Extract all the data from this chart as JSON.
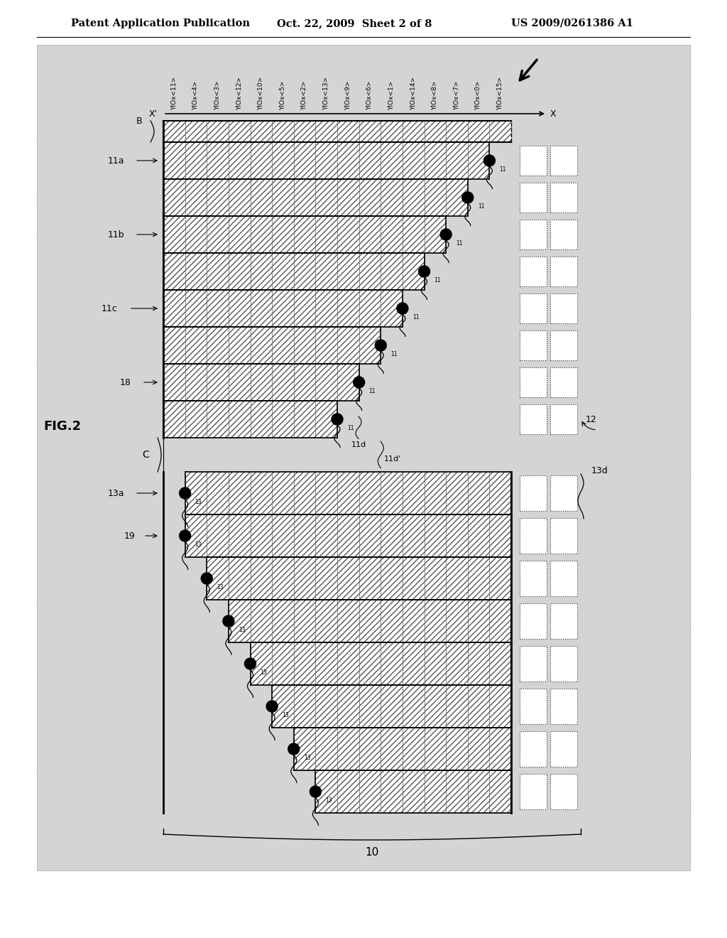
{
  "title_left": "Patent Application Publication",
  "title_mid": "Oct. 22, 2009  Sheet 2 of 8",
  "title_right": "US 2009/0261386 A1",
  "fig_label": "FIG.2",
  "bg_color": "#d4d4d4",
  "column_labels": [
    "YIOx<11>",
    "YIOx<4>",
    "YIOx<3>",
    "YIOx<12>",
    "YIOx<10>",
    "YIOx<5>",
    "YIOx<2>",
    "YIOx<13>",
    "YIOx<9>",
    "YIOx<6>",
    "YIOx<1>",
    "YIOx<14>",
    "YIOx<8>",
    "YIOx<7>",
    "YIOx<0>",
    "YIOx<15>"
  ],
  "num_upper_rows": 9,
  "num_lower_rows": 8,
  "num_cols": 16
}
